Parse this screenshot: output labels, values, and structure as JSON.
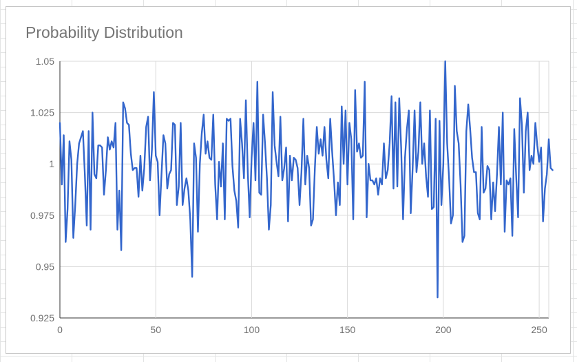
{
  "chart_data": {
    "type": "line",
    "title": "Probability Distribution",
    "xlabel": "",
    "ylabel": "",
    "xlim": [
      0,
      255
    ],
    "ylim": [
      0.925,
      1.05
    ],
    "grid": true,
    "legend": "none",
    "x_ticks": [
      0,
      50,
      100,
      150,
      200,
      250
    ],
    "x_tick_labels": [
      "0",
      "50",
      "100",
      "150",
      "200",
      "250"
    ],
    "y_ticks": [
      0.925,
      0.95,
      0.975,
      1,
      1.025,
      1.05
    ],
    "y_tick_labels": [
      "0.925",
      "0.95",
      "0.975",
      "1",
      "1.025",
      "1.05"
    ],
    "line_color": "#3366cc",
    "series": [
      {
        "values": [
          1.02,
          0.99,
          1.014,
          0.962,
          0.978,
          1.011,
          1.002,
          0.964,
          0.98,
          1.0,
          1.01,
          1.013,
          1.016,
          0.995,
          0.97,
          1.016,
          0.968,
          1.025,
          0.995,
          0.993,
          1.009,
          1.009,
          1.008,
          0.985,
          0.997,
          1.013,
          1.007,
          1.011,
          1.008,
          1.02,
          0.968,
          0.987,
          0.958,
          1.03,
          1.027,
          1.02,
          1.019,
          1.005,
          0.997,
          0.998,
          0.998,
          0.984,
          1.004,
          0.987,
          0.998,
          1.018,
          1.023,
          0.992,
          1.007,
          1.035,
          1.004,
          1.001,
          0.975,
          0.995,
          1.014,
          1.01,
          0.988,
          0.995,
          0.997,
          1.02,
          1.019,
          0.98,
          0.989,
          1.02,
          0.98,
          0.988,
          0.993,
          0.987,
          0.973,
          0.945,
          1.01,
          1.003,
          0.967,
          1.0,
          1.015,
          1.024,
          1.005,
          1.011,
          1.003,
          1.002,
          1.024,
          0.99,
          0.973,
          1.001,
          0.989,
          1.01,
          0.973,
          1.022,
          1.021,
          1.022,
          0.999,
          0.987,
          0.982,
          0.969,
          1.022,
          1.01,
          0.993,
          1.031,
          0.996,
          0.974,
          1.003,
          1.02,
          0.992,
          1.04,
          0.986,
          0.985,
          1.024,
          1.01,
          0.993,
          0.968,
          0.98,
          1.035,
          1.009,
          1.001,
          0.994,
          1.023,
          0.992,
          0.998,
          1.008,
          0.972,
          1.004,
          0.992,
          1.003,
          1.002,
          0.998,
          0.98,
          0.996,
          1.022,
          0.99,
          1.004,
          0.998,
          0.97,
          0.973,
          0.998,
          1.018,
          1.005,
          1.012,
          1.004,
          1.018,
          1.002,
          0.993,
          1.022,
          1.006,
          0.992,
          0.975,
          0.991,
          0.98,
          1.028,
          1.0,
          1.026,
          0.99,
          1.02,
          1.012,
          0.973,
          1.036,
          1.006,
          1.01,
          1.003,
          1.004,
          1.04,
          0.974,
          1.0,
          0.992,
          0.992,
          0.99,
          0.993,
          0.985,
          0.993,
          0.99,
          1.01,
          0.993,
          0.997,
          1.01,
          1.033,
          0.988,
          1.03,
          0.989,
          1.032,
          1.008,
          0.973,
          1.003,
          1.017,
          1.026,
          0.976,
          0.998,
          1.026,
          0.996,
          1.006,
          1.03,
          1.0,
          1.01,
          0.994,
          0.984,
          1.026,
          0.978,
          0.979,
          1.022,
          0.935,
          1.021,
          0.98,
          1.0,
          1.05,
          1.01,
          0.993,
          0.971,
          0.975,
          1.038,
          1.016,
          1.01,
          0.99,
          0.962,
          0.965,
          1.016,
          1.029,
          1.017,
          1.003,
          0.996,
          0.996,
          0.976,
          0.973,
          1.018,
          0.986,
          0.988,
          0.999,
          0.997,
          0.973,
          0.991,
          0.977,
          0.995,
          1.018,
          0.99,
          1.025,
          0.967,
          0.992,
          0.99,
          0.993,
          0.965,
          1.017,
          0.994,
          0.974,
          1.032,
          1.019,
          0.986,
          1.016,
          1.025,
          0.997,
          1.004,
          1.0,
          1.02,
          1.009,
          1.001,
          1.008,
          0.972,
          0.988,
          0.995,
          1.012,
          0.998,
          0.997
        ]
      }
    ]
  }
}
